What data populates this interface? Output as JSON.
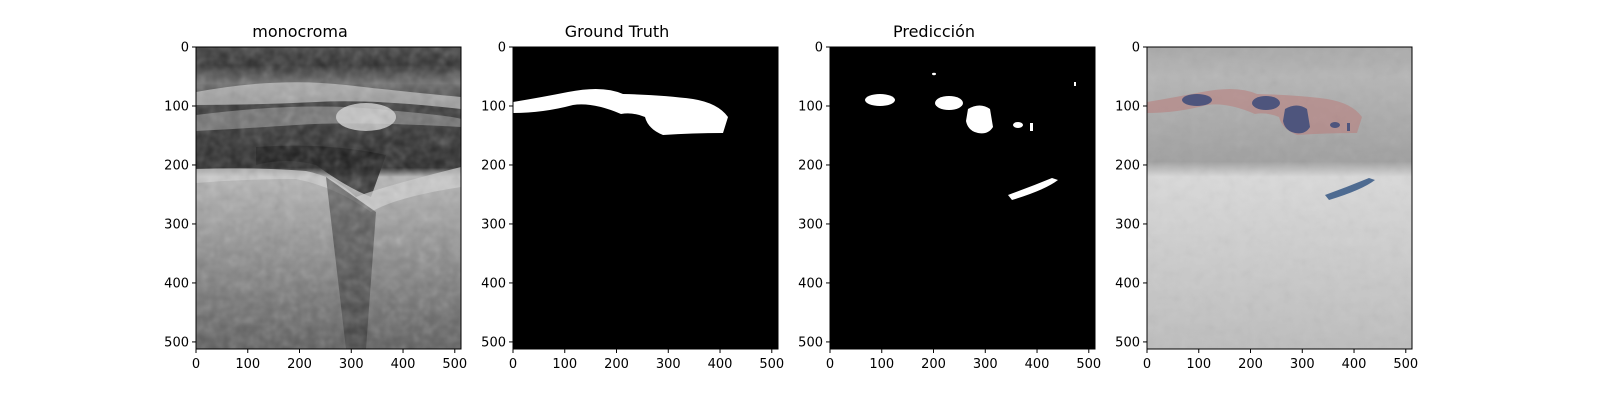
{
  "panels": [
    {
      "title": "monocroma"
    },
    {
      "title": "Ground Truth"
    },
    {
      "title": "Predicción"
    },
    {
      "title": ""
    }
  ],
  "axes": {
    "xticks": [
      0,
      100,
      200,
      300,
      400,
      500
    ],
    "yticks": [
      0,
      100,
      200,
      300,
      400,
      500
    ],
    "xlim": [
      0,
      512
    ],
    "ylim": [
      512,
      0
    ]
  },
  "overlay_colors": {
    "ground_truth": "#b9807f",
    "prediction": "#3d4b7a",
    "false_positive": "#3f5f8a"
  }
}
